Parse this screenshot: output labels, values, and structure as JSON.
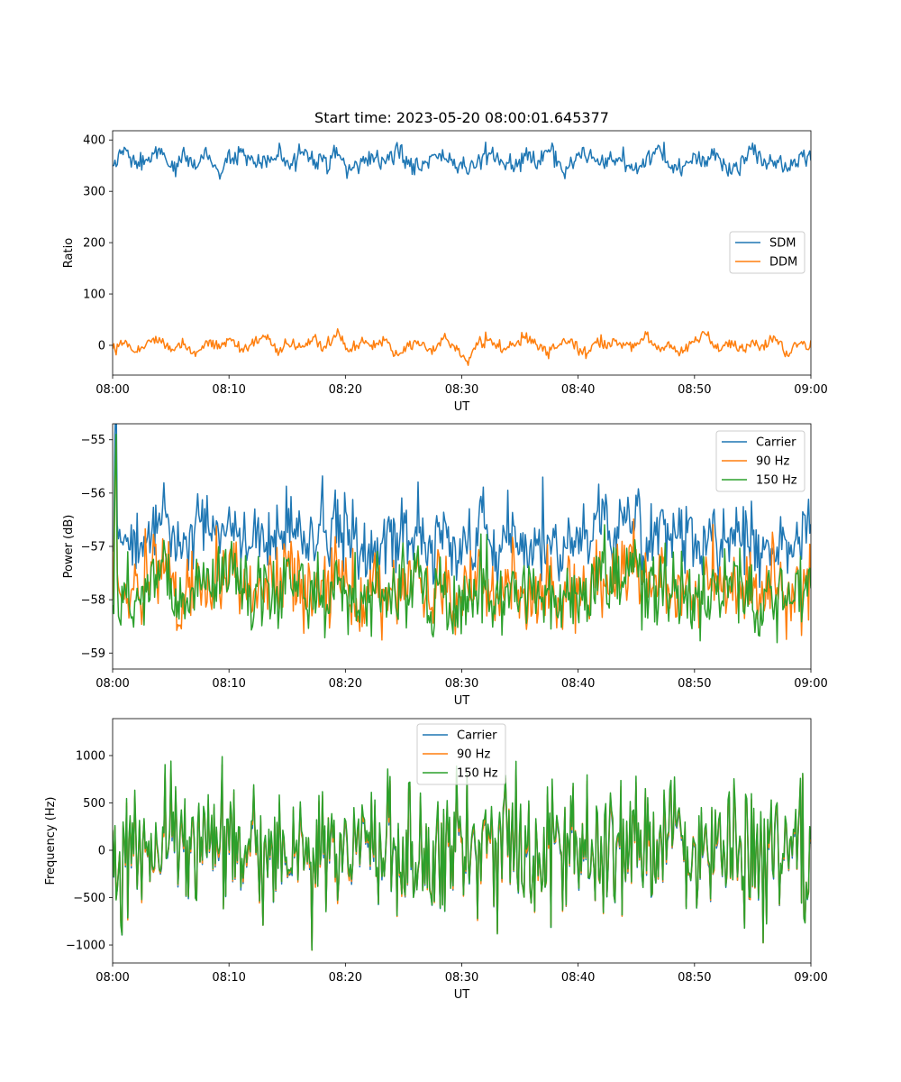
{
  "chart_data": [
    {
      "type": "line",
      "title": "Start time: 2023-05-20 08:00:01.645377",
      "xlabel": "UT",
      "ylabel": "Ratio",
      "x_range": [
        "08:00",
        "09:00"
      ],
      "x_ticks": [
        "08:00",
        "08:10",
        "08:20",
        "08:30",
        "08:40",
        "08:50",
        "09:00"
      ],
      "ylim": [
        -58,
        418
      ],
      "y_ticks": [
        0,
        100,
        200,
        300,
        400
      ],
      "legend_position": "center-right",
      "series": [
        {
          "name": "SDM",
          "color": "#1f77b4",
          "mean": 357,
          "amplitude": 20,
          "noise": [
            348,
            378,
            352,
            360,
            383,
            341,
            364,
            355,
            372,
            338,
            361,
            377,
            346,
            358,
            369,
            344,
            386,
            352,
            362,
            373,
            336,
            358,
            367,
            349,
            381,
            356,
            344,
            365,
            371,
            352,
            339,
            362,
            376,
            357,
            346,
            369,
            353,
            384,
            341,
            360,
            372,
            348,
            358,
            366,
            334,
            362,
            378,
            351,
            345,
            368,
            359,
            372,
            340,
            356,
            385,
            349,
            362,
            344,
            370,
            357
          ]
        },
        {
          "name": "DDM",
          "color": "#ff7f0e",
          "mean": 0,
          "amplitude": 12,
          "noise": [
            -3,
            8,
            -12,
            5,
            14,
            -7,
            2,
            -18,
            9,
            -4,
            12,
            -9,
            6,
            18,
            -14,
            3,
            -6,
            11,
            -2,
            24,
            -11,
            7,
            -5,
            15,
            -22,
            4,
            9,
            -8,
            13,
            -3,
            -35,
            6,
            11,
            -10,
            2,
            16,
            -6,
            -13,
            9,
            4,
            -17,
            12,
            -2,
            7,
            -9,
            20,
            -5,
            3,
            -15,
            10,
            22,
            -7,
            5,
            -12,
            8,
            -3,
            14,
            -20,
            6,
            1
          ]
        }
      ]
    },
    {
      "type": "line",
      "xlabel": "UT",
      "ylabel": "Power (dB)",
      "x_range": [
        "08:00",
        "09:00"
      ],
      "x_ticks": [
        "08:00",
        "08:10",
        "08:20",
        "08:30",
        "08:40",
        "08:50",
        "09:00"
      ],
      "ylim": [
        -59.3,
        -54.7
      ],
      "y_ticks": [
        -59,
        -58,
        -57,
        -56,
        -55
      ],
      "legend_position": "top-right",
      "series": [
        {
          "name": "Carrier",
          "color": "#1f77b4",
          "mean": -56.8,
          "amplitude": 0.4,
          "start_peak": -54.9,
          "peak_at_37min": -55.7
        },
        {
          "name": "90 Hz",
          "color": "#ff7f0e",
          "mean": -57.7,
          "amplitude": 0.45,
          "start_peak": -55.8
        },
        {
          "name": "150 Hz",
          "color": "#2ca02c",
          "mean": -57.8,
          "amplitude": 0.45,
          "start_peak": -55.7
        }
      ]
    },
    {
      "type": "line",
      "xlabel": "UT",
      "ylabel": "Frequency (Hz)",
      "x_range": [
        "08:00",
        "09:00"
      ],
      "x_ticks": [
        "08:00",
        "08:10",
        "08:20",
        "08:30",
        "08:40",
        "08:50",
        "09:00"
      ],
      "ylim": [
        -1190,
        1390
      ],
      "y_ticks": [
        -1000,
        -500,
        0,
        500,
        1000
      ],
      "legend_position": "top-center",
      "series": [
        {
          "name": "Carrier",
          "color": "#1f77b4",
          "mean": 0,
          "amplitude": 450
        },
        {
          "name": "90 Hz",
          "color": "#ff7f0e",
          "mean": 15,
          "amplitude": 460
        },
        {
          "name": "150 Hz",
          "color": "#2ca02c",
          "mean": 40,
          "amplitude": 480
        }
      ]
    }
  ]
}
